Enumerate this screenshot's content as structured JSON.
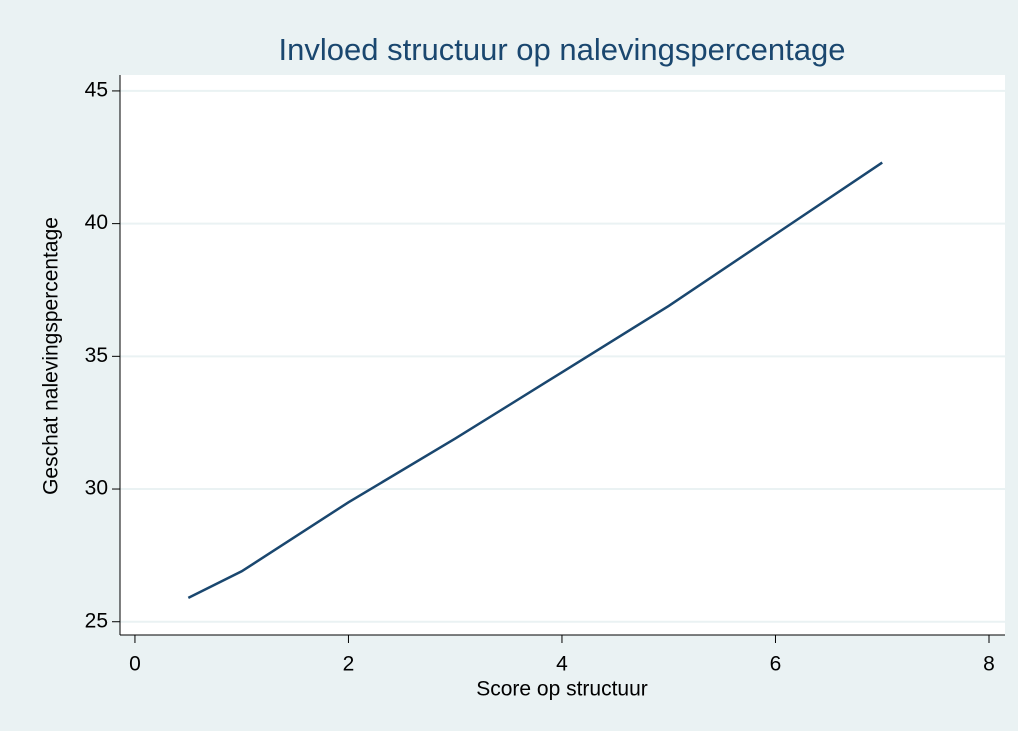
{
  "chart_data": {
    "type": "line",
    "title": "Invloed structuur op nalevingspercentage",
    "xlabel": "Score op structuur",
    "ylabel": "Geschat nalevingspercentage",
    "x": [
      0.5,
      1,
      2,
      3,
      4,
      5,
      6,
      7
    ],
    "series": [
      {
        "name": "Geschat nalevingspercentage",
        "color": "#1a476f",
        "values": [
          25.9,
          26.9,
          29.5,
          31.9,
          34.4,
          36.9,
          39.6,
          42.3
        ]
      }
    ],
    "xlim": [
      -0.14,
      8.15
    ],
    "xticks": [
      0,
      2,
      4,
      6,
      8
    ],
    "ylim": [
      24.5,
      45.6
    ],
    "yticks": [
      25,
      30,
      35,
      40,
      45
    ],
    "grid": true
  }
}
